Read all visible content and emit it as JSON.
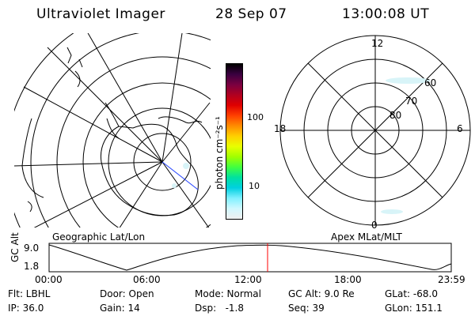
{
  "header": {
    "title": "Ultraviolet Imager",
    "date": "28 Sep 07",
    "time": "13:00:08 UT"
  },
  "geo_panel": {
    "label": "Geographic Lat/Lon"
  },
  "mag_panel": {
    "label": "Apex MLat/MLT",
    "mlt_labels": [
      "12",
      "18",
      "6",
      "0"
    ],
    "lat_labels": [
      "60",
      "70",
      "80"
    ]
  },
  "colorbar": {
    "unit_label": "photon cm⁻²s⁻¹",
    "ticks": [
      "100",
      "10"
    ],
    "colors": [
      "#000000",
      "#3a0040",
      "#7a0040",
      "#b00020",
      "#e00000",
      "#ff4000",
      "#ff8c00",
      "#ffd000",
      "#e8ff00",
      "#a0ff00",
      "#40ff40",
      "#00e0a0",
      "#00d0e0",
      "#80f0ff",
      "#d0f8ff",
      "#f0f0f0"
    ]
  },
  "altitude_plot": {
    "ylabel": "GC Alt",
    "yticks": [
      "9.0",
      "1.8"
    ],
    "xticks": [
      "00:00",
      "06:00",
      "12:00",
      "18:00",
      "23:59"
    ],
    "marker_color": "#ff0000"
  },
  "status": {
    "filter": "Flt: LBHL",
    "ip": "IP: 36.0",
    "door": "Door: Open",
    "gain": "Gain: 14",
    "mode": "Mode: Normal",
    "dsp": "Dsp:   -1.8",
    "gc_alt": "GC Alt: 9.0 Re",
    "seq": "Seq: 39",
    "glat": "GLat: -68.0",
    "glon": "GLon: 151.1"
  }
}
